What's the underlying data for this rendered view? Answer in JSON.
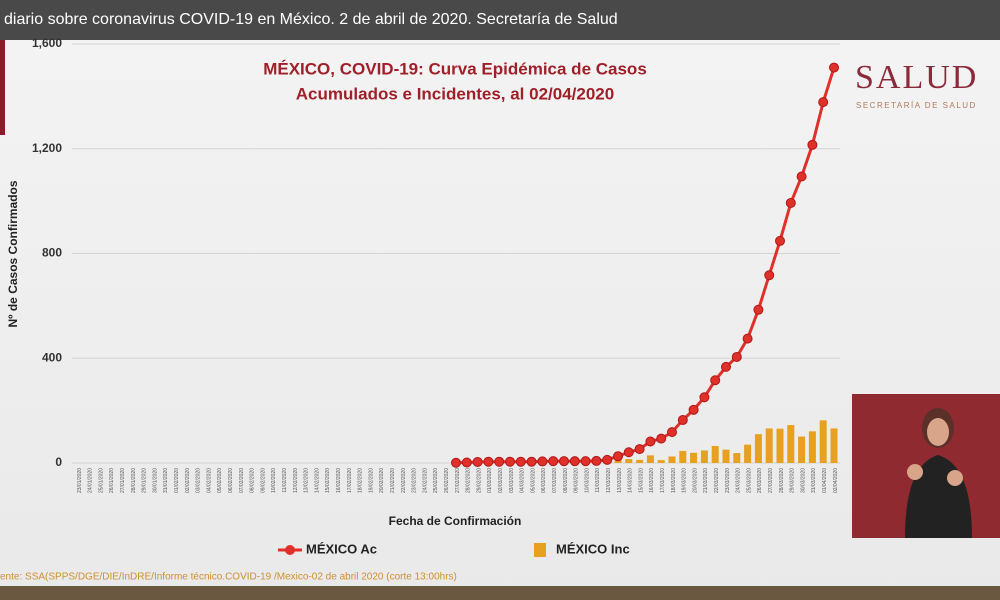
{
  "video_title": "diario sobre coronavirus COVID-19 en México. 2 de abril de 2020. Secretaría de Salud",
  "logo": {
    "name": "SALUD",
    "subtitle": "SECRETARÍA DE SALUD"
  },
  "source": "ente: SSA(SPPS/DGE/DIE/InDRE/Informe técnico.COVID-19 /Mexico-02 de abril 2020 (corte 13:00hrs)",
  "chart_data": {
    "type": "line-bar",
    "title": "MÉXICO, COVID-19: Curva Epidémica de Casos",
    "subtitle": "Acumulados e Incidentes, al 02/04/2020",
    "x_label": "Fecha de Confirmación",
    "y_label": "Nº de Casos Confirmados",
    "categories": [
      "23/01/2020",
      "24/01/2020",
      "25/01/2020",
      "26/01/2020",
      "27/01/2020",
      "28/01/2020",
      "29/01/2020",
      "30/01/2020",
      "31/01/2020",
      "01/02/2020",
      "02/02/2020",
      "03/02/2020",
      "04/02/2020",
      "05/02/2020",
      "06/02/2020",
      "07/02/2020",
      "08/02/2020",
      "09/02/2020",
      "10/02/2020",
      "11/02/2020",
      "12/02/2020",
      "13/02/2020",
      "14/02/2020",
      "15/02/2020",
      "16/02/2020",
      "17/02/2020",
      "18/02/2020",
      "19/02/2020",
      "20/02/2020",
      "21/02/2020",
      "22/02/2020",
      "23/02/2020",
      "24/02/2020",
      "25/02/2020",
      "26/02/2020",
      "27/02/2020",
      "28/02/2020",
      "29/02/2020",
      "01/03/2020",
      "02/03/2020",
      "03/03/2020",
      "04/03/2020",
      "05/03/2020",
      "06/03/2020",
      "07/03/2020",
      "08/03/2020",
      "09/03/2020",
      "10/03/2020",
      "11/03/2020",
      "12/03/2020",
      "13/03/2020",
      "14/03/2020",
      "15/03/2020",
      "16/03/2020",
      "17/03/2020",
      "18/03/2020",
      "19/03/2020",
      "20/03/2020",
      "21/03/2020",
      "22/03/2020",
      "23/03/2020",
      "24/03/2020",
      "25/03/2020",
      "26/03/2020",
      "27/03/2020",
      "28/03/2020",
      "29/03/2020",
      "30/03/2020",
      "31/03/2020",
      "01/04/2020",
      "02/04/2020"
    ],
    "series": [
      {
        "name": "MÉXICO Ac",
        "kind": "line",
        "color": "#e0302a",
        "values": [
          null,
          null,
          null,
          null,
          null,
          null,
          null,
          null,
          null,
          null,
          null,
          null,
          null,
          null,
          null,
          null,
          null,
          null,
          null,
          null,
          null,
          null,
          null,
          null,
          null,
          null,
          null,
          null,
          null,
          null,
          null,
          null,
          null,
          null,
          null,
          1,
          2,
          4,
          5,
          5,
          5,
          5,
          5,
          6,
          7,
          7,
          7,
          7,
          8,
          12,
          26,
          41,
          53,
          82,
          93,
          118,
          164,
          203,
          251,
          316,
          367,
          405,
          475,
          585,
          717,
          848,
          993,
          1094,
          1215,
          1378,
          1510
        ]
      },
      {
        "name": "MÉXICO Inc",
        "kind": "bar",
        "color": "#e8a020",
        "values": [
          null,
          null,
          null,
          null,
          null,
          null,
          null,
          null,
          null,
          null,
          null,
          null,
          null,
          null,
          null,
          null,
          null,
          null,
          null,
          null,
          null,
          null,
          null,
          null,
          null,
          null,
          null,
          null,
          null,
          null,
          null,
          null,
          null,
          null,
          null,
          1,
          1,
          2,
          1,
          0,
          0,
          0,
          0,
          1,
          1,
          0,
          0,
          0,
          1,
          4,
          14,
          15,
          12,
          29,
          11,
          25,
          46,
          39,
          48,
          65,
          51,
          38,
          70,
          110,
          132,
          131,
          145,
          101,
          121,
          163,
          132
        ]
      }
    ],
    "ylim": [
      0,
      1600
    ],
    "yticks": [
      0,
      400,
      800,
      {
        "value": 1200,
        "label": "1,200"
      },
      {
        "value": 1600,
        "label": "1,600"
      }
    ],
    "grid": true,
    "legend": "bottom"
  }
}
